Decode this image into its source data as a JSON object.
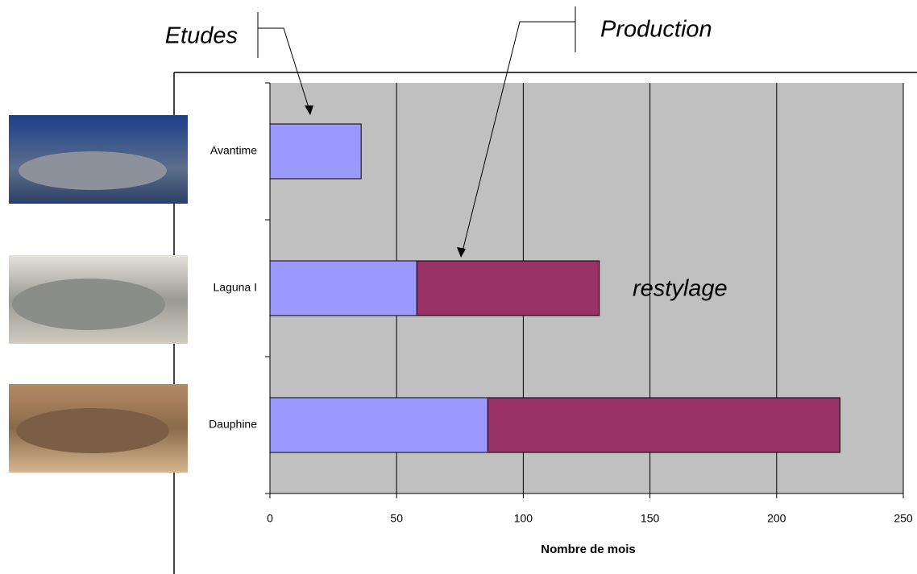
{
  "chart_data": {
    "type": "bar",
    "orientation": "horizontal",
    "stacked": true,
    "categories": [
      "Avantime",
      "Laguna I",
      "Dauphine"
    ],
    "series": [
      {
        "name": "Etudes",
        "color": "#9999ff",
        "values": [
          36,
          58,
          86
        ]
      },
      {
        "name": "Production",
        "color": "#993366",
        "values": [
          null,
          72,
          139
        ]
      }
    ],
    "xlim": [
      0,
      250
    ],
    "xticks": [
      0,
      50,
      100,
      150,
      200,
      250
    ],
    "x_label": "Nombre de mois",
    "annotation": "restylage",
    "grid": true,
    "plot_background": "#c0c0c0"
  }
}
